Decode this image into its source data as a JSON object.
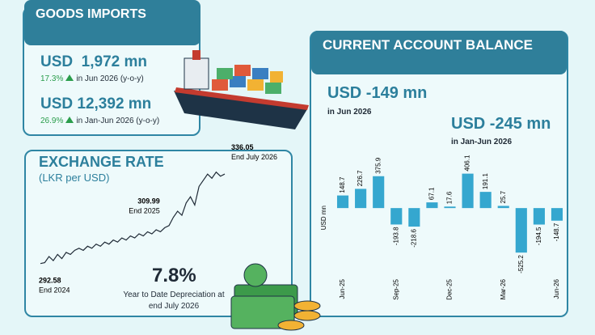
{
  "goods_imports": {
    "title": "GOODS IMPORTS",
    "monthly": {
      "value": "USD  1,972 mn",
      "change": "17.3%",
      "period": "in Jun 2026 (y-o-y)"
    },
    "cumulative": {
      "value": "USD 12,392 mn",
      "change": "26.9%",
      "period": "in Jan-Jun 2026 (y-o-y)"
    }
  },
  "exchange_rate": {
    "title": "EXCHANGE RATE",
    "subtitle": "(LKR per USD)",
    "depreciation": "7.8%",
    "depreciation_label": "Year to Date Depreciation at end July 2026"
  },
  "current_account": {
    "title": "CURRENT ACCOUNT BALANCE",
    "monthly": {
      "value": "USD -149 mn",
      "period": "in Jun 2026"
    },
    "cumulative": {
      "value": "USD -245 mn",
      "period": "in Jan-Jun 2026"
    }
  },
  "chart_data": [
    {
      "type": "line",
      "color": "#1f2a36",
      "values": [
        292.58,
        293,
        296,
        294,
        297,
        295,
        298,
        297,
        299,
        300,
        299,
        301,
        300,
        302,
        301,
        303,
        302,
        304,
        303,
        305,
        304,
        306,
        305,
        307,
        306,
        308,
        307,
        309,
        308,
        309.99,
        311,
        315,
        318,
        316,
        322,
        325,
        321,
        330,
        333,
        336,
        334,
        337,
        335,
        336.05
      ],
      "ylim": [
        285,
        340
      ],
      "annotations": [
        {
          "value": 292.58,
          "label": "End 2024"
        },
        {
          "value": 309.99,
          "label": "End 2025"
        },
        {
          "value": 336.05,
          "label": "End July 2026"
        }
      ]
    },
    {
      "type": "bar",
      "color": "#35a7cf",
      "y_label": "USD mn",
      "categories": [
        "Jun-25",
        null,
        null,
        "Sep-25",
        null,
        null,
        "Dec-25",
        null,
        null,
        "Mar-26",
        null,
        null,
        "Jun-26"
      ],
      "values": [
        148.7,
        226.7,
        375.9,
        -193.8,
        -218.6,
        67.1,
        17.6,
        406.1,
        191.1,
        25.7,
        -525.2,
        -194.5,
        -148.7
      ],
      "ylim": [
        -600,
        450
      ]
    }
  ]
}
